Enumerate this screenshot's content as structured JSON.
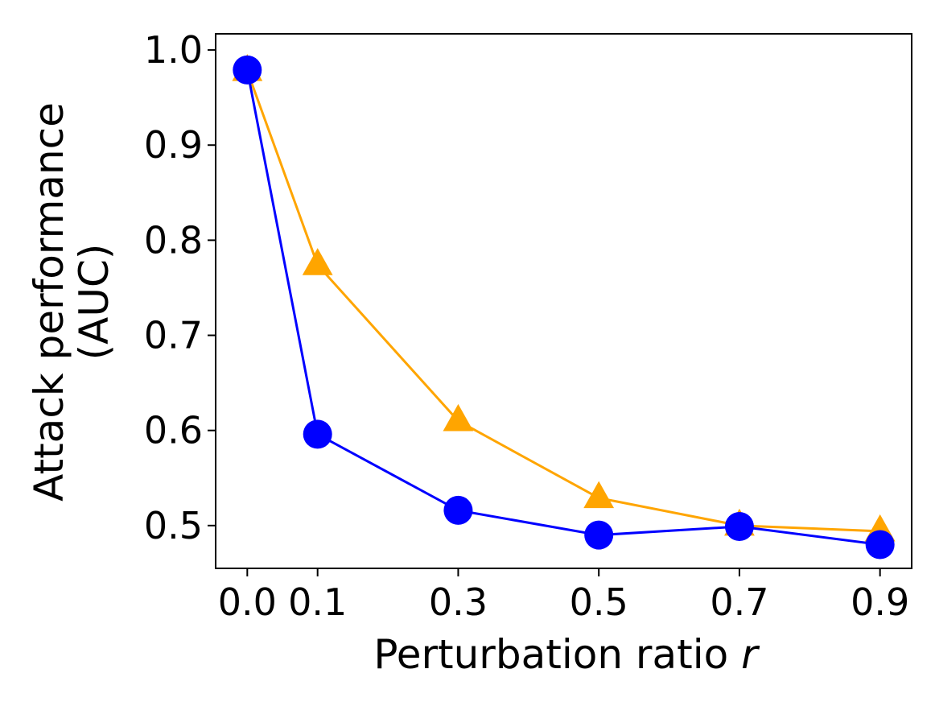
{
  "chart_data": {
    "type": "line",
    "title": "",
    "xlabel": "Perturbation ratio",
    "xlabel_var": "r",
    "ylabel_lines": [
      "Attack performance",
      "(AUC)"
    ],
    "x": [
      0.0,
      0.1,
      0.3,
      0.5,
      0.7,
      0.9
    ],
    "x_tick_labels": [
      "0.0",
      "0.1",
      "0.3",
      "0.5",
      "0.7",
      "0.9"
    ],
    "y_ticks": [
      0.5,
      0.6,
      0.7,
      0.8,
      0.9,
      1.0
    ],
    "y_tick_labels": [
      "0.5",
      "0.6",
      "0.7",
      "0.8",
      "0.9",
      "1.0"
    ],
    "xlim": [
      -0.045,
      0.945
    ],
    "ylim": [
      0.455,
      1.017
    ],
    "grid": false,
    "legend": "none",
    "series": [
      {
        "marker": "triangle",
        "color": "#FFA500",
        "values": [
          0.978,
          0.774,
          0.61,
          0.529,
          0.5,
          0.494
        ]
      },
      {
        "marker": "circle",
        "color": "#0000FF",
        "values": [
          0.979,
          0.596,
          0.516,
          0.49,
          0.499,
          0.48
        ]
      }
    ]
  }
}
